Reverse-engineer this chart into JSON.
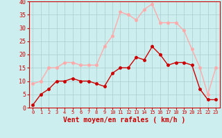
{
  "xlabel": "Vent moyen/en rafales ( km/h )",
  "xlabel_color": "#cc0000",
  "background_color": "#cceeee",
  "grid_color": "#aacccc",
  "hours": [
    0,
    1,
    2,
    3,
    4,
    5,
    6,
    7,
    8,
    9,
    10,
    11,
    12,
    13,
    14,
    15,
    16,
    17,
    18,
    19,
    20,
    21,
    22,
    23
  ],
  "wind_avg": [
    1,
    5,
    7,
    10,
    10,
    11,
    10,
    10,
    9,
    8,
    13,
    15,
    15,
    19,
    18,
    23,
    20,
    16,
    17,
    17,
    16,
    7,
    3,
    3
  ],
  "wind_gust": [
    9,
    10,
    15,
    15,
    17,
    17,
    16,
    16,
    16,
    23,
    27,
    36,
    35,
    33,
    37,
    39,
    32,
    32,
    32,
    29,
    22,
    15,
    5,
    15
  ],
  "avg_color": "#cc0000",
  "gust_color": "#ffaaaa",
  "ylim": [
    0,
    40
  ],
  "yticks": [
    0,
    5,
    10,
    15,
    20,
    25,
    30,
    35,
    40
  ],
  "marker_size": 2.5,
  "linewidth": 1.0
}
